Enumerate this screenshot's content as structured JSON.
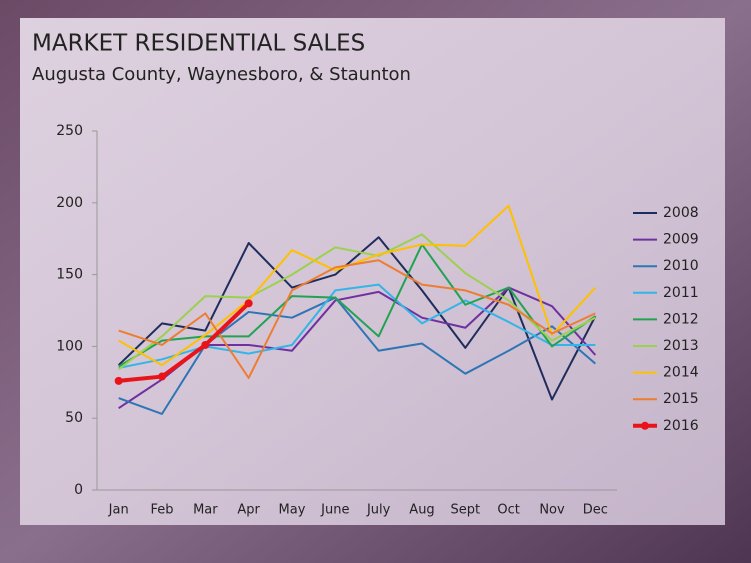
{
  "chart_data": {
    "type": "line",
    "title": "MARKET RESIDENTIAL SALES",
    "subtitle": "Augusta County, Waynesboro, & Staunton",
    "categories": [
      "Jan",
      "Feb",
      "Mar",
      "Apr",
      "May",
      "June",
      "July",
      "Aug",
      "Sept",
      "Oct",
      "Nov",
      "Dec"
    ],
    "ylim": [
      0,
      250
    ],
    "yticks": [
      0,
      50,
      100,
      150,
      200,
      250
    ],
    "grid": false,
    "legend": "right",
    "series": [
      {
        "name": "2008",
        "color": "#1f2d5c",
        "values": [
          87,
          116,
          111,
          172,
          141,
          150,
          176,
          139,
          99,
          141,
          63,
          121
        ]
      },
      {
        "name": "2009",
        "color": "#7030a0",
        "values": [
          57,
          77,
          101,
          101,
          97,
          132,
          138,
          120,
          113,
          141,
          128,
          94
        ]
      },
      {
        "name": "2010",
        "color": "#2e75b6",
        "values": [
          64,
          53,
          101,
          124,
          120,
          134,
          97,
          102,
          81,
          97,
          114,
          88
        ]
      },
      {
        "name": "2011",
        "color": "#33b5e8",
        "values": [
          85,
          91,
          100,
          95,
          101,
          139,
          143,
          116,
          132,
          117,
          101,
          101
        ]
      },
      {
        "name": "2012",
        "color": "#22a352",
        "values": [
          86,
          104,
          107,
          107,
          135,
          134,
          107,
          171,
          129,
          141,
          100,
          121
        ]
      },
      {
        "name": "2013",
        "color": "#9bd14d",
        "values": [
          84,
          107,
          135,
          134,
          150,
          169,
          163,
          178,
          151,
          132,
          104,
          120
        ]
      },
      {
        "name": "2014",
        "color": "#ffc000",
        "values": [
          104,
          87,
          108,
          132,
          167,
          153,
          164,
          171,
          170,
          198,
          108,
          141
        ]
      },
      {
        "name": "2015",
        "color": "#ed7d31",
        "values": [
          111,
          101,
          123,
          78,
          139,
          155,
          160,
          143,
          139,
          129,
          109,
          123
        ]
      },
      {
        "name": "2016",
        "color": "#e8141a",
        "marker": "circle",
        "values": [
          76,
          79,
          101,
          130,
          null,
          null,
          null,
          null,
          null,
          null,
          null,
          null
        ]
      }
    ]
  }
}
